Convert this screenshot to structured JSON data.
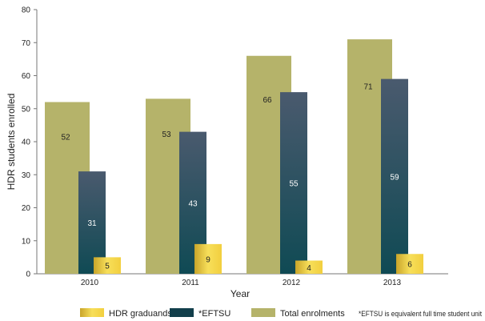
{
  "chart_data": {
    "type": "bar",
    "categories": [
      "2010",
      "2011",
      "2012",
      "2013"
    ],
    "series": [
      {
        "name": "Total enrolments",
        "values": [
          52,
          53,
          66,
          71
        ],
        "color": "#b5b36a"
      },
      {
        "name": "*EFTSU",
        "values": [
          31,
          43,
          55,
          59
        ],
        "color": "#1d4a58"
      },
      {
        "name": "HDR graduands",
        "values": [
          5,
          9,
          4,
          6
        ],
        "color": "#f2d64b"
      }
    ],
    "xlabel": "Year",
    "ylabel": "HDR students enrolled",
    "ylim": [
      0,
      80
    ],
    "yticks": [
      0,
      10,
      20,
      30,
      40,
      50,
      60,
      70,
      80
    ],
    "grid": false,
    "legend_position": "bottom",
    "footnote": "*EFTSU is equivalent full time student unit"
  }
}
